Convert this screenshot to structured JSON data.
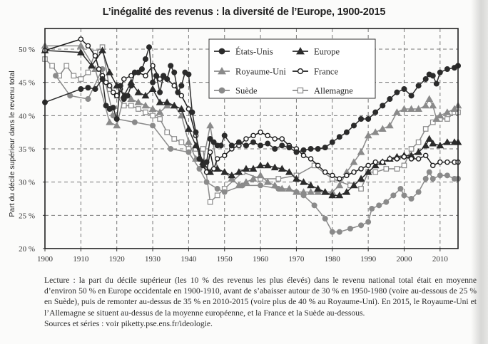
{
  "chart_data": {
    "type": "line",
    "title": "L’inégalité des revenus : la diversité de l’Europe, 1900-2015",
    "xlabel": "",
    "ylabel": "Part du décile supérieur dans le revenu total",
    "xlim": [
      1900,
      2015
    ],
    "ylim": [
      20,
      52
    ],
    "grid": true,
    "legend_position": "top-center",
    "x_ticks": [
      1900,
      1910,
      1920,
      1930,
      1940,
      1950,
      1960,
      1970,
      1980,
      1990,
      2000,
      2010
    ],
    "x_tick_labels": [
      "1900",
      "1910",
      "1920",
      "1930",
      "1940",
      "1950",
      "1960",
      "1970",
      "1980",
      "1990",
      "2000",
      "2010"
    ],
    "y_ticks": [
      20,
      25,
      30,
      35,
      40,
      45,
      50
    ],
    "y_tick_labels": [
      "20 %",
      "25 %",
      "30 %",
      "35 %",
      "40 %",
      "45 %",
      "50 %"
    ],
    "series": [
      {
        "name": "États-Unis",
        "color": "#2b2b2b",
        "marker": "circle-filled",
        "x": [
          1900,
          1910,
          1912,
          1914,
          1916,
          1917,
          1918,
          1919,
          1920,
          1921,
          1922,
          1923,
          1924,
          1925,
          1926,
          1927,
          1928,
          1929,
          1930,
          1931,
          1932,
          1933,
          1934,
          1935,
          1936,
          1937,
          1938,
          1939,
          1940,
          1941,
          1942,
          1943,
          1944,
          1945,
          1946,
          1947,
          1948,
          1949,
          1950,
          1952,
          1954,
          1956,
          1958,
          1960,
          1962,
          1964,
          1966,
          1968,
          1970,
          1972,
          1974,
          1976,
          1978,
          1980,
          1982,
          1984,
          1986,
          1988,
          1990,
          1992,
          1994,
          1996,
          1998,
          2000,
          2002,
          2004,
          2006,
          2007,
          2008,
          2009,
          2010,
          2012,
          2014,
          2015
        ],
        "values": [
          42.0,
          44.0,
          44.2,
          44.0,
          45.5,
          41.5,
          41.0,
          41.2,
          39.5,
          44.5,
          42.5,
          43.0,
          44.5,
          46.5,
          46.5,
          47.0,
          48.5,
          50.3,
          45.0,
          46.0,
          43.5,
          46.0,
          45.5,
          47.5,
          46.5,
          43.5,
          44.5,
          46.5,
          46.2,
          40.5,
          37.5,
          33.5,
          32.5,
          33.0,
          36.5,
          36.0,
          35.5,
          35.5,
          37.0,
          35.5,
          36.0,
          35.5,
          36.0,
          35.5,
          35.8,
          35.0,
          35.5,
          35.2,
          34.5,
          34.8,
          35.0,
          35.0,
          35.2,
          36.0,
          36.8,
          37.5,
          38.5,
          39.5,
          39.5,
          40.5,
          41.5,
          42.5,
          43.5,
          44.0,
          43.0,
          44.5,
          45.5,
          46.2,
          46.0,
          44.8,
          46.5,
          47.0,
          47.2,
          47.5
        ]
      },
      {
        "name": "Europe",
        "color": "#2b2b2b",
        "marker": "triangle-filled",
        "x": [
          1900,
          1910,
          1913,
          1916,
          1918,
          1920,
          1922,
          1924,
          1926,
          1928,
          1930,
          1932,
          1934,
          1936,
          1938,
          1940,
          1942,
          1944,
          1946,
          1948,
          1950,
          1952,
          1954,
          1956,
          1958,
          1960,
          1962,
          1964,
          1966,
          1968,
          1970,
          1972,
          1974,
          1976,
          1978,
          1980,
          1982,
          1984,
          1986,
          1988,
          1990,
          1992,
          1994,
          1996,
          1998,
          2000,
          2002,
          2004,
          2006,
          2007,
          2008,
          2010,
          2012,
          2014,
          2015
        ],
        "values": [
          49.8,
          49.5,
          47.5,
          49.8,
          46.5,
          44.5,
          43.0,
          45.0,
          43.5,
          43.0,
          44.0,
          42.0,
          42.0,
          41.5,
          41.0,
          38.0,
          35.5,
          33.0,
          31.5,
          32.0,
          31.5,
          31.0,
          31.5,
          32.0,
          32.0,
          32.5,
          32.5,
          32.2,
          32.0,
          31.5,
          30.5,
          30.0,
          29.5,
          29.0,
          28.5,
          28.0,
          28.0,
          28.5,
          29.5,
          30.5,
          31.5,
          32.5,
          33.0,
          33.5,
          33.8,
          34.0,
          34.0,
          34.5,
          35.5,
          36.5,
          35.8,
          35.5,
          36.0,
          36.0,
          36.0
        ]
      },
      {
        "name": "Royaume-Uni",
        "color": "#8a8a8a",
        "marker": "triangle-filled",
        "x": [
          1900,
          1910,
          1914,
          1918,
          1920,
          1922,
          1924,
          1926,
          1928,
          1930,
          1932,
          1934,
          1936,
          1938,
          1940,
          1942,
          1944,
          1946,
          1948,
          1950,
          1952,
          1954,
          1956,
          1958,
          1960,
          1962,
          1964,
          1966,
          1968,
          1970,
          1972,
          1974,
          1976,
          1978,
          1980,
          1982,
          1984,
          1986,
          1988,
          1990,
          1992,
          1994,
          1996,
          1998,
          2000,
          2002,
          2004,
          2006,
          2007,
          2008,
          2009,
          2010,
          2012,
          2014,
          2015
        ],
        "values": [
          50.5,
          50.5,
          47.0,
          39.0,
          38.5,
          43.0,
          42.5,
          42.0,
          41.5,
          41.0,
          40.5,
          41.5,
          41.5,
          40.0,
          36.0,
          33.5,
          33.0,
          38.5,
          32.0,
          31.5,
          30.5,
          29.5,
          30.0,
          30.5,
          31.0,
          30.0,
          29.5,
          29.0,
          29.0,
          28.5,
          28.5,
          28.5,
          28.5,
          28.5,
          28.5,
          29.5,
          31.5,
          33.0,
          34.5,
          37.0,
          37.5,
          38.0,
          38.5,
          40.5,
          41.0,
          41.0,
          41.0,
          41.5,
          42.5,
          41.5,
          39.5,
          40.0,
          40.5,
          41.0,
          41.5
        ]
      },
      {
        "name": "France",
        "color": "#1e1e1e",
        "marker": "circle-open",
        "x": [
          1900,
          1910,
          1912,
          1914,
          1915,
          1916,
          1917,
          1918,
          1919,
          1920,
          1921,
          1922,
          1924,
          1926,
          1928,
          1930,
          1932,
          1934,
          1936,
          1938,
          1940,
          1942,
          1944,
          1945,
          1946,
          1947,
          1948,
          1950,
          1952,
          1954,
          1956,
          1958,
          1960,
          1962,
          1964,
          1966,
          1968,
          1970,
          1972,
          1974,
          1976,
          1978,
          1980,
          1982,
          1984,
          1986,
          1988,
          1990,
          1992,
          1994,
          1996,
          1998,
          2000,
          2002,
          2004,
          2006,
          2008,
          2010,
          2012,
          2014,
          2015
        ],
        "values": [
          49.8,
          51.5,
          50.5,
          49.0,
          47.0,
          46.0,
          45.0,
          44.5,
          43.5,
          43.0,
          44.0,
          45.5,
          46.0,
          46.5,
          46.0,
          47.5,
          45.5,
          45.5,
          44.5,
          43.0,
          41.0,
          37.0,
          32.5,
          31.5,
          34.5,
          32.0,
          33.5,
          34.0,
          35.0,
          35.5,
          36.5,
          37.0,
          37.5,
          37.0,
          36.5,
          36.5,
          35.5,
          35.0,
          34.0,
          33.5,
          32.5,
          31.5,
          31.0,
          30.5,
          31.0,
          31.5,
          32.0,
          32.5,
          33.0,
          33.0,
          33.5,
          33.5,
          33.8,
          33.5,
          33.5,
          34.0,
          32.5,
          33.0,
          33.0,
          33.0,
          33.0
        ]
      },
      {
        "name": "Suède",
        "color": "#8a8a8a",
        "marker": "circle-filled",
        "x": [
          1903,
          1907,
          1912,
          1916,
          1919,
          1920,
          1925,
          1930,
          1935,
          1940,
          1943,
          1945,
          1948,
          1950,
          1955,
          1960,
          1965,
          1970,
          1972,
          1975,
          1978,
          1980,
          1982,
          1985,
          1988,
          1990,
          1991,
          1993,
          1995,
          1997,
          1999,
          2000,
          2002,
          2004,
          2006,
          2007,
          2008,
          2010,
          2012,
          2014,
          2015
        ],
        "values": [
          46.0,
          43.0,
          42.5,
          47.0,
          40.0,
          39.5,
          39.0,
          38.5,
          35.0,
          34.5,
          32.0,
          30.0,
          29.0,
          28.5,
          29.5,
          29.5,
          29.0,
          28.5,
          28.0,
          26.5,
          24.5,
          22.5,
          22.5,
          23.0,
          23.5,
          24.0,
          26.0,
          26.5,
          27.0,
          28.0,
          29.0,
          28.0,
          27.5,
          28.5,
          30.5,
          31.5,
          30.5,
          31.0,
          31.0,
          30.5,
          30.5
        ]
      },
      {
        "name": "Allemagne",
        "color": "#8a8a8a",
        "marker": "square-open",
        "x": [
          1900,
          1902,
          1904,
          1906,
          1908,
          1910,
          1912,
          1914,
          1916,
          1918,
          1920,
          1922,
          1924,
          1926,
          1928,
          1930,
          1932,
          1934,
          1936,
          1938,
          1940,
          1942,
          1944,
          1946,
          1948,
          1950,
          1955,
          1960,
          1965,
          1970,
          1975,
          1980,
          1985,
          1988,
          1990,
          1992,
          1995,
          1998,
          2000,
          2002,
          2004,
          2006,
          2008,
          2010,
          2012,
          2014,
          2015
        ],
        "values": [
          48.5,
          47.5,
          46.0,
          47.5,
          46.0,
          45.5,
          46.5,
          49.5,
          50.3,
          44.0,
          43.0,
          41.5,
          41.5,
          41.0,
          40.5,
          40.0,
          39.5,
          37.5,
          36.5,
          36.0,
          35.0,
          35.0,
          35.0,
          27.0,
          28.0,
          29.0,
          31.5,
          30.5,
          30.5,
          31.0,
          32.5,
          30.5,
          29.5,
          29.0,
          31.5,
          31.5,
          32.0,
          32.0,
          32.5,
          35.0,
          36.0,
          38.0,
          39.0,
          39.5,
          39.5,
          40.5,
          40.5
        ]
      }
    ]
  },
  "caption": {
    "lecture": "Lecture : la part du décile supérieur (les 10 % des revenus les plus élevés) dans le revenu national total était en moyenne d’environ 50 % en Europe occidentale en 1900-1910, avant de s’abaisser autour de 30 % en 1950-1980 (voire au-dessous de 25 % en Suède), puis de remonter au-dessus de 35 % en 2010-2015 (voire plus de 40 % au Royaume-Uni). En 2015, le Royaume-Uni et l’Allemagne se situent au-dessus de la moyenne européenne, et la France et la Suède au-dessous.",
    "sources": "Sources et séries : voir piketty.pse.ens.fr/ideologie."
  }
}
